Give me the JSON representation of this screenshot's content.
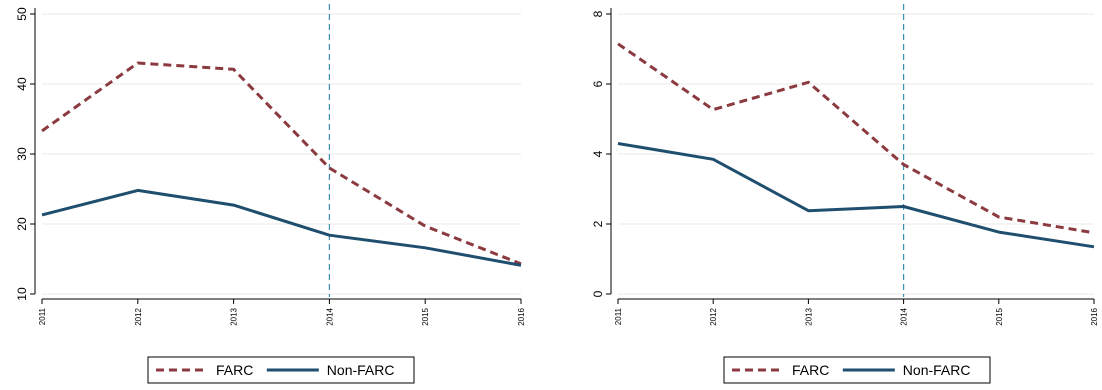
{
  "colors": {
    "farc": "#8b3a3f",
    "non_farc": "#1f4e6e",
    "reference_line": "#3a8fb7",
    "grid": "#eaeaea"
  },
  "chart_data": [
    {
      "type": "line",
      "title": "",
      "xlabel": "",
      "ylabel": "",
      "x": [
        "2011",
        "2012",
        "2013",
        "2014",
        "2015",
        "2016"
      ],
      "ylim": [
        10,
        50
      ],
      "yticks": [
        "10",
        "20",
        "30",
        "40",
        "50"
      ],
      "grid": true,
      "reference_line_x": "2014",
      "legend_position": "bottom",
      "series": [
        {
          "name": "FARC",
          "style": "dashed",
          "values": [
            33.3,
            43.0,
            42.1,
            28.0,
            19.7,
            14.3
          ]
        },
        {
          "name": "Non-FARC",
          "style": "solid",
          "values": [
            21.3,
            24.8,
            22.7,
            18.4,
            16.6,
            14.1
          ]
        }
      ]
    },
    {
      "type": "line",
      "title": "",
      "xlabel": "",
      "ylabel": "",
      "x": [
        "2011",
        "2012",
        "2013",
        "2014",
        "2015",
        "2016"
      ],
      "ylim": [
        0,
        8
      ],
      "yticks": [
        "0",
        "2",
        "4",
        "6",
        "8"
      ],
      "grid": true,
      "reference_line_x": "2014",
      "legend_position": "bottom",
      "series": [
        {
          "name": "FARC",
          "style": "dashed",
          "values": [
            7.15,
            5.27,
            6.05,
            3.7,
            2.2,
            1.75
          ]
        },
        {
          "name": "Non-FARC",
          "style": "solid",
          "values": [
            4.3,
            3.85,
            2.38,
            2.5,
            1.77,
            1.35
          ]
        }
      ]
    }
  ]
}
